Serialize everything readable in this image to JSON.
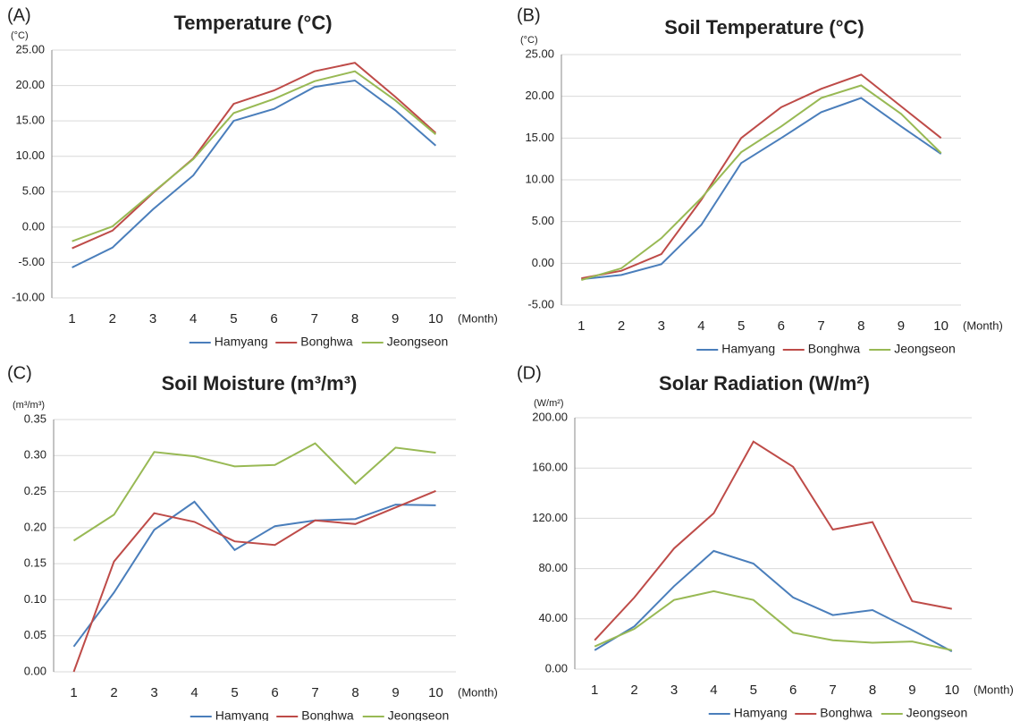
{
  "chart_data": [
    {
      "type": "line",
      "panel_label": "(A)",
      "title": "Temperature (°C)",
      "y_unit": "(°C)",
      "x_unit": "(Month)",
      "categories": [
        "1",
        "2",
        "3",
        "4",
        "5",
        "6",
        "7",
        "8",
        "9",
        "10"
      ],
      "series": [
        {
          "name": "Hamyang",
          "color": "#4a7ebb",
          "values": [
            -5.7,
            -2.9,
            2.5,
            7.3,
            15.0,
            16.7,
            19.8,
            20.7,
            16.5,
            11.5
          ]
        },
        {
          "name": "Bonghwa",
          "color": "#be4b48",
          "values": [
            -3.0,
            -0.5,
            4.8,
            9.7,
            17.4,
            19.3,
            22.0,
            23.2,
            18.4,
            13.3
          ]
        },
        {
          "name": "Jeongseon",
          "color": "#98b954",
          "values": [
            -2.0,
            0.1,
            4.9,
            9.6,
            16.1,
            18.1,
            20.6,
            22.0,
            17.9,
            13.1
          ]
        }
      ],
      "ylim": [
        -10,
        25
      ],
      "yticks": [
        {
          "value": -10,
          "label": "-10.00"
        },
        {
          "value": -5,
          "label": "-5.00"
        },
        {
          "value": 0,
          "label": "0.00"
        },
        {
          "value": 5,
          "label": "5.00"
        },
        {
          "value": 10,
          "label": "10.00"
        },
        {
          "value": 15,
          "label": "15.00"
        },
        {
          "value": 20,
          "label": "20.00"
        },
        {
          "value": 25,
          "label": "25.00"
        }
      ],
      "grid": true,
      "legend": "bottom"
    },
    {
      "type": "line",
      "panel_label": "(B)",
      "title": "Soil Temperature (°C)",
      "y_unit": "(°C)",
      "x_unit": "(Month)",
      "categories": [
        "1",
        "2",
        "3",
        "4",
        "5",
        "6",
        "7",
        "8",
        "9",
        "10"
      ],
      "series": [
        {
          "name": "Hamyang",
          "color": "#4a7ebb",
          "values": [
            -1.9,
            -1.4,
            -0.1,
            4.6,
            12.0,
            15.0,
            18.1,
            19.8,
            16.4,
            13.1
          ]
        },
        {
          "name": "Bonghwa",
          "color": "#be4b48",
          "values": [
            -1.8,
            -0.9,
            1.1,
            7.6,
            15.0,
            18.7,
            20.9,
            22.6,
            18.8,
            15.0
          ]
        },
        {
          "name": "Jeongseon",
          "color": "#98b954",
          "values": [
            -2.0,
            -0.6,
            3.0,
            7.8,
            13.3,
            16.4,
            19.8,
            21.3,
            17.9,
            13.2
          ]
        }
      ],
      "ylim": [
        -5,
        25
      ],
      "yticks": [
        {
          "value": -5,
          "label": "-5.00"
        },
        {
          "value": 0,
          "label": "0.00"
        },
        {
          "value": 5,
          "label": "5.00"
        },
        {
          "value": 10,
          "label": "10.00"
        },
        {
          "value": 15,
          "label": "15.00"
        },
        {
          "value": 20,
          "label": "20.00"
        },
        {
          "value": 25,
          "label": "25.00"
        }
      ],
      "grid": true,
      "legend": "bottom"
    },
    {
      "type": "line",
      "panel_label": "(C)",
      "title": "Soil Moisture (m³/m³)",
      "y_unit": "(m³/m³)",
      "x_unit": "(Month)",
      "categories": [
        "1",
        "2",
        "3",
        "4",
        "5",
        "6",
        "7",
        "8",
        "9",
        "10"
      ],
      "series": [
        {
          "name": "Hamyang",
          "color": "#4a7ebb",
          "values": [
            0.035,
            0.11,
            0.197,
            0.236,
            0.169,
            0.202,
            0.21,
            0.212,
            0.232,
            0.231
          ]
        },
        {
          "name": "Bonghwa",
          "color": "#be4b48",
          "values": [
            0.0,
            0.153,
            0.22,
            0.208,
            0.181,
            0.176,
            0.21,
            0.205,
            0.228,
            0.251
          ]
        },
        {
          "name": "Jeongseon",
          "color": "#98b954",
          "values": [
            0.182,
            0.218,
            0.305,
            0.299,
            0.285,
            0.287,
            0.317,
            0.261,
            0.311,
            0.304
          ]
        }
      ],
      "ylim": [
        0,
        0.35
      ],
      "yticks": [
        {
          "value": 0,
          "label": "0.00"
        },
        {
          "value": 0.05,
          "label": "0.05"
        },
        {
          "value": 0.1,
          "label": "0.10"
        },
        {
          "value": 0.15,
          "label": "0.15"
        },
        {
          "value": 0.2,
          "label": "0.20"
        },
        {
          "value": 0.25,
          "label": "0.25"
        },
        {
          "value": 0.3,
          "label": "0.30"
        },
        {
          "value": 0.35,
          "label": "0.35"
        }
      ],
      "grid": true,
      "legend": "bottom"
    },
    {
      "type": "line",
      "panel_label": "(D)",
      "title": "Solar Radiation (W/m²)",
      "y_unit": "(W/m²)",
      "x_unit": "(Month)",
      "categories": [
        "1",
        "2",
        "3",
        "4",
        "5",
        "6",
        "7",
        "8",
        "9",
        "10"
      ],
      "series": [
        {
          "name": "Hamyang",
          "color": "#4a7ebb",
          "values": [
            15,
            34,
            66,
            94,
            84,
            57,
            43,
            47,
            31,
            14
          ]
        },
        {
          "name": "Bonghwa",
          "color": "#be4b48",
          "values": [
            23,
            57,
            96,
            124,
            181,
            161,
            111,
            117,
            54,
            48
          ]
        },
        {
          "name": "Jeongseon",
          "color": "#98b954",
          "values": [
            18,
            32,
            55,
            62,
            55,
            29,
            23,
            21,
            22,
            15
          ]
        }
      ],
      "ylim": [
        0,
        200
      ],
      "yticks": [
        {
          "value": 0,
          "label": "0.00"
        },
        {
          "value": 40,
          "label": "40.00"
        },
        {
          "value": 80,
          "label": "80.00"
        },
        {
          "value": 120,
          "label": "120.00"
        },
        {
          "value": 160,
          "label": "160.00"
        },
        {
          "value": 200,
          "label": "200.00"
        }
      ],
      "grid": true,
      "legend": "bottom"
    }
  ]
}
